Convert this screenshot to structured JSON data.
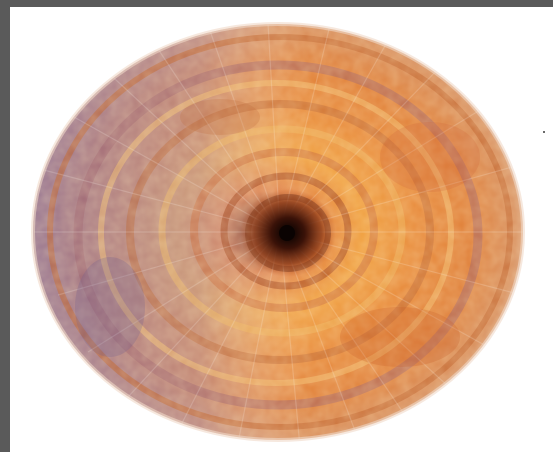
{
  "image": {
    "subject": "circular-radial-disc",
    "palette": {
      "frame": "#5a5a5a",
      "background": "#ffffff",
      "orange": "#e0702a",
      "amber": "#f0a83a",
      "rust": "#b85a2e",
      "violet": "#7a6aa8",
      "dark_core": "#3a1a10",
      "pale": "#f3e6dc"
    }
  }
}
